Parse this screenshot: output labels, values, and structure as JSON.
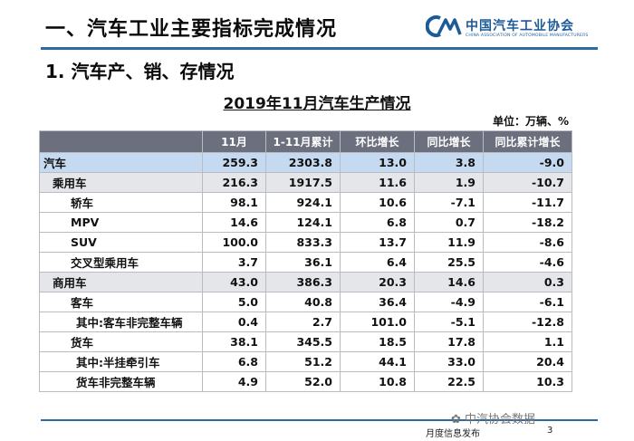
{
  "heading": "一、汽车工业主要指标完成情况",
  "logo": {
    "name_cn": "中国汽车工业协会",
    "name_en": "CHINA ASSOCIATION OF AUTOMOBILE MANUFACTURERS"
  },
  "subheading": "1. 汽车产、销、存情况",
  "table": {
    "title": "2019年11月汽车生产情况",
    "unit": "单位：万辆、%",
    "columns": [
      "",
      "11月",
      "1-11月累计",
      "环比增长",
      "同比增长",
      "同比累计增长"
    ],
    "rows": [
      {
        "level": 0,
        "label": "汽车",
        "values": [
          "259.3",
          "2303.8",
          "13.0",
          "3.8",
          "-9.0"
        ]
      },
      {
        "level": 1,
        "label": "乘用车",
        "values": [
          "216.3",
          "1917.5",
          "11.6",
          "1.9",
          "-10.7"
        ]
      },
      {
        "level": 2,
        "label": "轿车",
        "values": [
          "98.1",
          "924.1",
          "10.6",
          "-7.1",
          "-11.7"
        ]
      },
      {
        "level": 2,
        "label": "MPV",
        "values": [
          "14.6",
          "124.1",
          "6.8",
          "0.7",
          "-18.2"
        ]
      },
      {
        "level": 2,
        "label": "SUV",
        "values": [
          "100.0",
          "833.3",
          "13.7",
          "11.9",
          "-8.6"
        ]
      },
      {
        "level": 2,
        "label": "交叉型乘用车",
        "values": [
          "3.7",
          "36.1",
          "6.4",
          "25.5",
          "-4.6"
        ]
      },
      {
        "level": 1,
        "label": "商用车",
        "values": [
          "43.0",
          "386.3",
          "20.3",
          "14.6",
          "0.3"
        ]
      },
      {
        "level": 2,
        "label": "客车",
        "values": [
          "5.0",
          "40.8",
          "36.4",
          "-4.9",
          "-6.1"
        ]
      },
      {
        "level": 3,
        "label": "其中:客车非完整车辆",
        "values": [
          "0.4",
          "2.7",
          "101.0",
          "-5.1",
          "-12.8"
        ]
      },
      {
        "level": 2,
        "label": "货车",
        "values": [
          "38.1",
          "345.5",
          "18.5",
          "17.8",
          "1.1"
        ]
      },
      {
        "level": 3,
        "label": "其中:半挂牵引车",
        "values": [
          "6.8",
          "51.2",
          "44.1",
          "33.0",
          "20.4"
        ]
      },
      {
        "level": 3,
        "label": "货车非完整车辆",
        "values": [
          "4.9",
          "52.0",
          "10.8",
          "22.5",
          "10.3"
        ]
      }
    ]
  },
  "watermark": "中汽协会数据",
  "footer": {
    "label": "月度信息发布",
    "page": "3"
  },
  "colors": {
    "header_bg": "#6b6f7e",
    "total_row_bg": "#c5daf0",
    "subtotal_row_bg": "#e4e6ea",
    "rule": "#2c6aa0",
    "logo": "#1d5a98"
  }
}
